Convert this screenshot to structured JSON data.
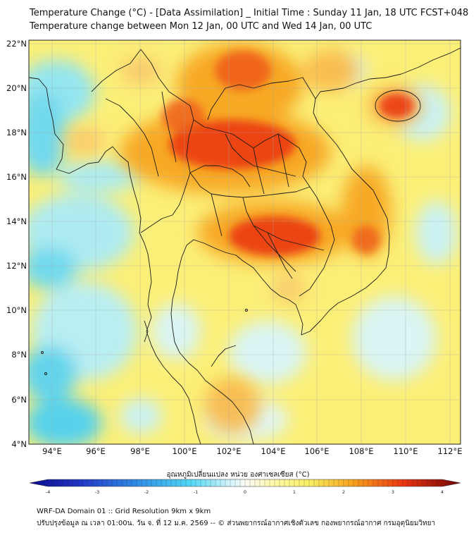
{
  "header": {
    "title_line1": "Temperature Change (°C) - [Data Assimilation] _ Initial Time : Sunday 11 Jan, 18 UTC FCST+048",
    "title_line2": "Temperature change between Mon 12 Jan, 00 UTC and Wed 14 Jan, 00 UTC"
  },
  "map": {
    "lat_labels": [
      "22°N",
      "20°N",
      "18°N",
      "16°N",
      "14°N",
      "12°N",
      "10°N",
      "8°N",
      "6°N",
      "4°N"
    ],
    "lon_labels": [
      "94°E",
      "96°E",
      "98°E",
      "100°E",
      "102°E",
      "104°E",
      "106°E",
      "108°E",
      "110°E",
      "112°E"
    ],
    "grid": true
  },
  "colorbar": {
    "label": "อุณหภูมิเปลี่ยนแปลง หน่วย องศาเซลเซียส (°C)",
    "ticks": [
      "-4",
      "-3",
      "-2",
      "-1",
      "0",
      "1",
      "2",
      "3",
      "4"
    ],
    "colors": {
      "cold_max": "#0a0a8a",
      "cold": "#2f6fd6",
      "cool": "#4fd6f5",
      "neutral": "#fbfbf5",
      "warm_low": "#f8ef62",
      "warm": "#f7a21c",
      "hot": "#ea3410",
      "hot_max": "#6e0404"
    }
  },
  "footer": {
    "line1": "WRF-DA Domain 01 :: Grid Resolution 9km x 9km",
    "line2": "ปรับปรุงข้อมูล ณ เวลา 01:00น. วัน จ. ที่ 12 ม.ค. 2569 -- © ส่วนพยากรณ์อากาศเชิงตัวเลข กองพยากรณ์อากาศ กรมอุตุนิยมวิทยา"
  }
}
